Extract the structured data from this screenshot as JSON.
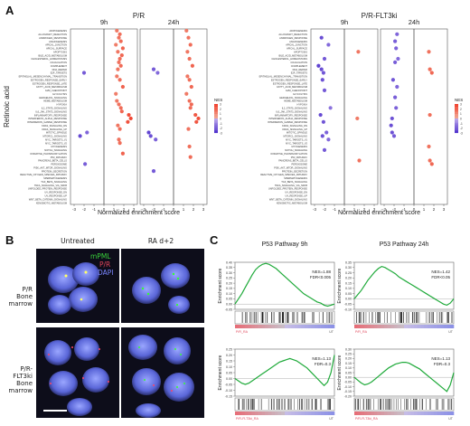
{
  "figure": {
    "panel_labels": {
      "a": "A",
      "b": "B",
      "c": "C"
    }
  },
  "panel_a": {
    "row_label": "Retinoic acid",
    "xlabel": "Normalized enrichment score",
    "ticks": [
      "-3",
      "-2",
      "-1",
      "0",
      "1",
      "2",
      "3"
    ],
    "legend_title": "NES",
    "legend_values": [
      "3",
      "2",
      "1",
      "0",
      "-1",
      "-2",
      "-3"
    ],
    "pathways": [
      "ADIPOGENESIS",
      "ALLOGRAFT_REJECTION",
      "ANDROGEN_RESPONSE",
      "ANGIOGENESIS",
      "APICAL_JUNCTION",
      "APICAL_SURFACE",
      "APOPTOSIS",
      "BILE_ACID_METABOLISM",
      "CHOLESTEROL_HOMEOSTASIS",
      "COAGULATION",
      "COMPLEMENT",
      "DNA_REPAIR",
      "E2F_TARGETS",
      "EPITHELIAL_MESENCHYMAL_TRANSITION",
      "ESTROGEN_RESPONSE_EARLY",
      "ESTROGEN_RESPONSE_LATE",
      "FATTY_ACID_METABOLISM",
      "G2M_CHECKPOINT",
      "GLYCOLYSIS",
      "HEDGEHOG_SIGNALING",
      "HEME_METABOLISM",
      "HYPOXIA",
      "IL2_STAT5_SIGNALING",
      "IL6_JAK_STAT3_SIGNALING",
      "INFLAMMATORY_RESPONSE",
      "INTERFERON_ALPHA_RESPONSE",
      "INTERFERON_GAMMA_RESPONSE",
      "KRAS_SIGNALING_DN",
      "KRAS_SIGNALING_UP",
      "MITOTIC_SPINDLE",
      "MTORC1_SIGNALING",
      "MYC_TARGETS_V1",
      "MYC_TARGETS_V2",
      "MYOGENESIS",
      "NOTCH_SIGNALING",
      "OXIDATIVE_PHOSPHORYLATION",
      "P53_PATHWAY",
      "PANCREAS_BETA_CELLS",
      "PEROXISOME",
      "PI3K_AKT_MTOR_SIGNALING",
      "PROTEIN_SECRETION",
      "REACTIVE_OXYGEN_SPECIES_PATHWAY",
      "SPERMATOGENESIS",
      "TGF_BETA_SIGNALING",
      "TNFA_SIGNALING_VIA_NFKB",
      "UNFOLDED_PROTEIN_RESPONSE",
      "UV_RESPONSE_DN",
      "UV_RESPONSE_UP",
      "WNT_BETA_CATENIN_SIGNALING",
      "XENOBIOTIC_METABOLISM"
    ],
    "groups": [
      {
        "title": "P/R",
        "facets": [
          {
            "label": "9h",
            "points": [
              [
                0,
                1.3
              ],
              [
                1,
                1.6
              ],
              [
                2,
                1.5
              ],
              [
                3,
                1.7
              ],
              [
                4,
                1.2
              ],
              [
                5,
                1.9
              ],
              [
                6,
                1.4
              ],
              [
                7,
                1.8
              ],
              [
                8,
                1.6
              ],
              [
                9,
                1.5
              ],
              [
                10,
                1.7
              ],
              [
                11,
                1.4
              ],
              [
                12,
                -2.0
              ],
              [
                13,
                1.3
              ],
              [
                14,
                1.6
              ],
              [
                16,
                1.9
              ],
              [
                18,
                1.2
              ],
              [
                20,
                1.3
              ],
              [
                21,
                1.5
              ],
              [
                22,
                1.7
              ],
              [
                23,
                1.8
              ],
              [
                24,
                2.5
              ],
              [
                25,
                2.7
              ],
              [
                26,
                2.4
              ],
              [
                27,
                1.4
              ],
              [
                28,
                1.6
              ],
              [
                29,
                -1.7
              ],
              [
                30,
                -2.4
              ],
              [
                31,
                1.5
              ],
              [
                32,
                1.6
              ],
              [
                35,
                1.9
              ],
              [
                38,
                -1.9
              ]
            ]
          },
          {
            "label": "24h",
            "points": [
              [
                0,
                1.3
              ],
              [
                2,
                1.5
              ],
              [
                4,
                1.7
              ],
              [
                6,
                1.4
              ],
              [
                8,
                1.6
              ],
              [
                10,
                1.9
              ],
              [
                11,
                -2.0
              ],
              [
                12,
                -1.6
              ],
              [
                13,
                1.4
              ],
              [
                14,
                1.6
              ],
              [
                16,
                1.8
              ],
              [
                18,
                1.3
              ],
              [
                20,
                1.6
              ],
              [
                21,
                1.8
              ],
              [
                22,
                1.7
              ],
              [
                24,
                2.2
              ],
              [
                25,
                2.5
              ],
              [
                26,
                2.3
              ],
              [
                28,
                1.5
              ],
              [
                29,
                -2.5
              ],
              [
                30,
                -2.3
              ],
              [
                31,
                -1.8
              ],
              [
                33,
                1.6
              ],
              [
                36,
                1.7
              ],
              [
                40,
                -2.0
              ]
            ]
          }
        ]
      },
      {
        "title": "P/R-FLT3ki",
        "facets": [
          {
            "label": "9h",
            "points": [
              [
                2,
                -2.3
              ],
              [
                4,
                -1.6
              ],
              [
                6,
                1.4
              ],
              [
                8,
                -2.0
              ],
              [
                10,
                -2.6
              ],
              [
                11,
                -2.3
              ],
              [
                12,
                -2.1
              ],
              [
                14,
                -2.2
              ],
              [
                17,
                -2.0
              ],
              [
                22,
                -1.4
              ],
              [
                24,
                -2.4
              ],
              [
                25,
                1.3
              ],
              [
                26,
                -2.1
              ],
              [
                29,
                -1.8
              ],
              [
                30,
                -2.2
              ],
              [
                31,
                -1.6
              ],
              [
                34,
                -2.0
              ],
              [
                37,
                1.5
              ]
            ]
          },
          {
            "label": "24h",
            "points": [
              [
                1,
                -1.7
              ],
              [
                3,
                -1.9
              ],
              [
                5,
                -1.8
              ],
              [
                6,
                1.5
              ],
              [
                8,
                -1.6
              ],
              [
                9,
                -1.9
              ],
              [
                11,
                1.6
              ],
              [
                12,
                1.8
              ],
              [
                14,
                -2.1
              ],
              [
                16,
                -1.7
              ],
              [
                19,
                -1.9
              ],
              [
                22,
                -1.8
              ],
              [
                24,
                1.6
              ],
              [
                25,
                -2.2
              ],
              [
                27,
                -2.3
              ],
              [
                29,
                -2.2
              ],
              [
                30,
                -2.0
              ],
              [
                33,
                1.5
              ],
              [
                37,
                1.6
              ],
              [
                38,
                1.8
              ]
            ]
          }
        ]
      }
    ]
  },
  "panel_b": {
    "columns": [
      "Untreated",
      "RA d+2"
    ],
    "rows": [
      "P/R\nBone marrow",
      "P/R-FLT3ki\nBone marrow"
    ],
    "legend": [
      {
        "text": "mPML",
        "color": "#39d13b"
      },
      {
        "text": "P/R",
        "color": "#e0455a"
      },
      {
        "text": "DAPI",
        "color": "#7a86ff"
      }
    ]
  },
  "panel_c": {
    "columns": [
      "P53 Pathway 9h",
      "P53 Pathway 24h"
    ],
    "ylabel": "Enrichment score",
    "plots": [
      {
        "nes": "NES=1.88",
        "fdr": "FDR<0.005",
        "left_label": "P/R_RA",
        "right_label": "UT",
        "yticks": [
          "0.40",
          "0.35",
          "0.30",
          "0.25",
          "0.20",
          "0.15",
          "0.10",
          "0.05",
          "0.00",
          "-0.05"
        ],
        "curve": [
          0,
          0.05,
          0.1,
          0.16,
          0.22,
          0.28,
          0.33,
          0.36,
          0.38,
          0.39,
          0.38,
          0.36,
          0.34,
          0.31,
          0.28,
          0.25,
          0.22,
          0.19,
          0.16,
          0.13,
          0.1,
          0.08,
          0.06,
          0.04,
          0.02,
          0.01,
          -0.01,
          -0.02,
          -0.01,
          0.0
        ]
      },
      {
        "nes": "NES=1.42",
        "fdr": "FDR<0.05",
        "left_label": "P/R_RA",
        "right_label": "UT",
        "yticks": [
          "0.35",
          "0.30",
          "0.25",
          "0.20",
          "0.15",
          "0.10",
          "0.05",
          "0.00",
          "-0.05",
          "-0.10"
        ],
        "curve": [
          0,
          0.04,
          0.08,
          0.13,
          0.18,
          0.22,
          0.26,
          0.29,
          0.31,
          0.3,
          0.28,
          0.26,
          0.24,
          0.21,
          0.19,
          0.17,
          0.15,
          0.13,
          0.11,
          0.09,
          0.07,
          0.05,
          0.03,
          0.01,
          -0.01,
          -0.03,
          -0.05,
          -0.06,
          -0.04,
          0.0
        ]
      },
      {
        "nes": "NES=1.13",
        "fdr": "FDR=0.3",
        "left_label": "P/R-FLT3ki_RA",
        "right_label": "UT",
        "yticks": [
          "0.25",
          "0.20",
          "0.15",
          "0.10",
          "0.05",
          "0.00",
          "-0.05",
          "-0.10",
          "-0.15"
        ],
        "curve": [
          0,
          -0.02,
          -0.04,
          -0.05,
          -0.04,
          -0.02,
          0.0,
          0.02,
          0.04,
          0.06,
          0.08,
          0.1,
          0.12,
          0.14,
          0.15,
          0.16,
          0.17,
          0.16,
          0.15,
          0.13,
          0.11,
          0.09,
          0.06,
          0.03,
          0.0,
          -0.03,
          -0.06,
          -0.03,
          0.05,
          0.2
        ]
      },
      {
        "nes": "NES=1.13",
        "fdr": "FDR=0.3",
        "left_label": "P/R-FLT3ki_RA",
        "right_label": "UT",
        "yticks": [
          "0.30",
          "0.25",
          "0.20",
          "0.15",
          "0.10",
          "0.05",
          "0.00",
          "-0.05",
          "-0.10",
          "-0.15",
          "-0.20"
        ],
        "curve": [
          0,
          -0.03,
          -0.06,
          -0.08,
          -0.07,
          -0.05,
          -0.02,
          0.01,
          0.04,
          0.07,
          0.1,
          0.12,
          0.14,
          0.15,
          0.16,
          0.16,
          0.15,
          0.13,
          0.11,
          0.09,
          0.06,
          0.03,
          0.0,
          -0.03,
          -0.06,
          -0.09,
          -0.12,
          -0.15,
          -0.08,
          0.05
        ]
      }
    ]
  }
}
